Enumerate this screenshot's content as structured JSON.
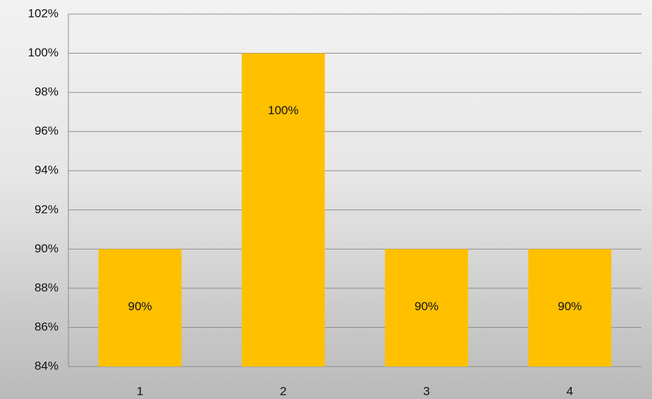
{
  "chart_data": {
    "type": "bar",
    "categories": [
      "1",
      "2",
      "3",
      "4"
    ],
    "values": [
      90,
      100,
      90,
      90
    ],
    "value_labels": [
      "90%",
      "100%",
      "90%",
      "90%"
    ],
    "color": "#ffc000",
    "ylim": [
      84,
      102
    ],
    "yticks": [
      {
        "value": 84,
        "label": "84%"
      },
      {
        "value": 86,
        "label": "86%"
      },
      {
        "value": 88,
        "label": "88%"
      },
      {
        "value": 90,
        "label": "90%"
      },
      {
        "value": 92,
        "label": "92%"
      },
      {
        "value": 94,
        "label": "94%"
      },
      {
        "value": 96,
        "label": "96%"
      },
      {
        "value": 98,
        "label": "98%"
      },
      {
        "value": 100,
        "label": "100%"
      },
      {
        "value": 102,
        "label": "102%"
      }
    ],
    "grid": true
  }
}
